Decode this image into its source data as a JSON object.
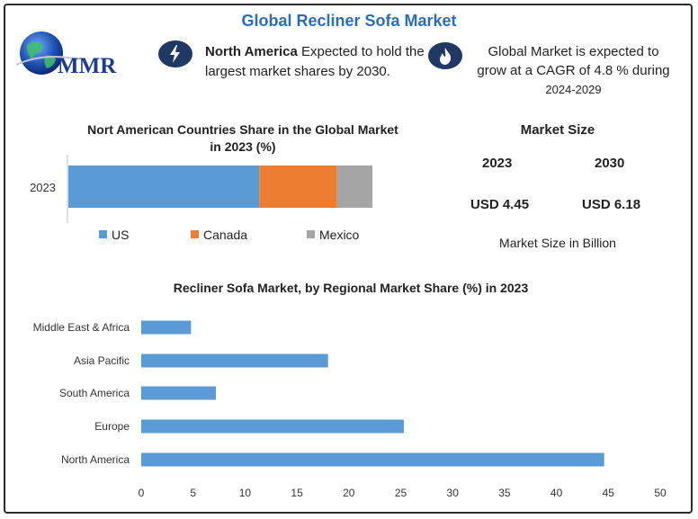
{
  "header": {
    "title": "Global Recliner Sofa Market"
  },
  "logo": {
    "text": "MMR",
    "icon": "globe-icon"
  },
  "info": {
    "north_america_bold": "North America",
    "north_america_rest": " Expected to hold the largest market shares by 2030.",
    "north_america_icon": "lightning-bolt-icon",
    "cagr_text": "Global Market is expected to grow at a CAGR of 4.8 % during",
    "cagr_years": "2024-2029",
    "cagr_icon": "flame-icon"
  },
  "market_size": {
    "title": "Market Size",
    "year1": "2023",
    "year2": "2030",
    "value1": "USD 4.45",
    "value2": "USD 6.18",
    "note": "Market Size in Billion"
  },
  "colors": {
    "accent": "#2e6db4",
    "us": "#5b9bd5",
    "canada": "#ed7d31",
    "mexico": "#a5a5a5",
    "bars": "#5b9bd5"
  },
  "chart_data": [
    {
      "type": "bar",
      "orientation": "horizontal-stacked",
      "title": "Nort American Countries Share in the Global Market in 2023 (%)",
      "categories": [
        "2023"
      ],
      "series": [
        {
          "name": "US",
          "values": [
            27
          ]
        },
        {
          "name": "Canada",
          "values": [
            11
          ]
        },
        {
          "name": "Mexico",
          "values": [
            5
          ]
        }
      ],
      "legend": "bottom"
    },
    {
      "type": "bar",
      "orientation": "horizontal",
      "title": "Recliner Sofa Market, by Regional Market Share (%) in 2023",
      "categories": [
        "Middle East & Africa",
        "Asia Pacific",
        "South America",
        "Europe",
        "North America"
      ],
      "values": [
        4.8,
        18,
        7.2,
        25.3,
        44.6
      ],
      "xlim": [
        0,
        50
      ],
      "xticks": [
        "0",
        "5",
        "10",
        "15",
        "20",
        "25",
        "30",
        "35",
        "40",
        "45",
        "50"
      ],
      "grid": false
    }
  ]
}
